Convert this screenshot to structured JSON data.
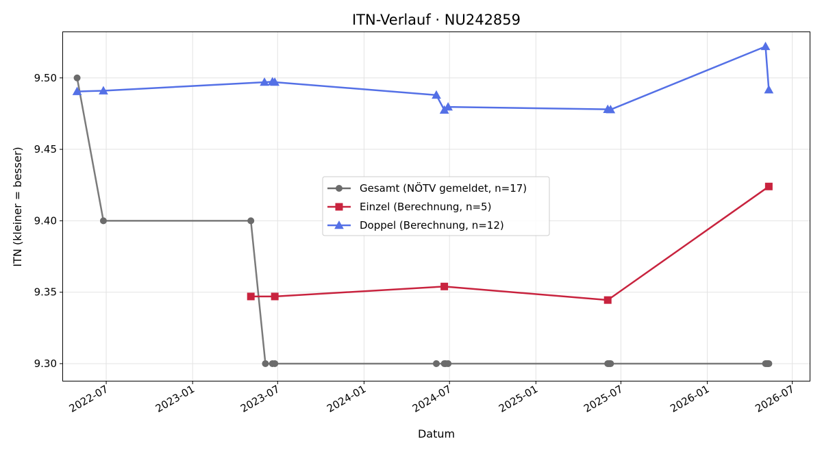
{
  "chart_data": {
    "type": "line",
    "title": "ITN-Verlauf · NU242859",
    "xlabel": "Datum",
    "ylabel": "ITN  (kleiner = besser)",
    "ylim": [
      9.288,
      9.532
    ],
    "xlim": [
      "2022-03-31",
      "2026-08-07"
    ],
    "yticks": [
      9.3,
      9.35,
      9.4,
      9.45,
      9.5
    ],
    "ytick_labels": [
      "9.30",
      "9.35",
      "9.40",
      "9.45",
      "9.50"
    ],
    "xticks": [
      "2022-07-01",
      "2023-01-01",
      "2023-07-01",
      "2024-01-01",
      "2024-07-01",
      "2025-01-01",
      "2025-07-01",
      "2026-01-01",
      "2026-07-01"
    ],
    "xtick_labels": [
      "2022-07",
      "2023-01",
      "2023-07",
      "2024-01",
      "2024-07",
      "2025-01",
      "2025-07",
      "2026-01",
      "2026-07"
    ],
    "grid": true,
    "legend_position": "center-right",
    "series": [
      {
        "name": "Gesamt (NÖTV gemeldet, n=17)",
        "color": "#6b6b6b",
        "marker": "circle",
        "points": [
          {
            "x": "2022-04-30",
            "y": 9.5
          },
          {
            "x": "2022-06-25",
            "y": 9.4
          },
          {
            "x": "2023-05-05",
            "y": 9.4
          },
          {
            "x": "2023-06-05",
            "y": 9.3
          },
          {
            "x": "2023-06-20",
            "y": 9.3
          },
          {
            "x": "2023-06-25",
            "y": 9.3
          },
          {
            "x": "2024-06-03",
            "y": 9.3
          },
          {
            "x": "2024-06-20",
            "y": 9.3
          },
          {
            "x": "2024-06-23",
            "y": 9.3
          },
          {
            "x": "2024-06-28",
            "y": 9.3
          },
          {
            "x": "2025-06-03",
            "y": 9.3
          },
          {
            "x": "2025-06-06",
            "y": 9.3
          },
          {
            "x": "2025-06-09",
            "y": 9.3
          },
          {
            "x": "2026-05-05",
            "y": 9.3
          },
          {
            "x": "2026-05-08",
            "y": 9.3
          },
          {
            "x": "2026-05-10",
            "y": 9.3
          },
          {
            "x": "2026-05-12",
            "y": 9.3
          }
        ]
      },
      {
        "name": "Einzel (Berechnung, n=5)",
        "color": "#c8233e",
        "marker": "square",
        "points": [
          {
            "x": "2023-05-05",
            "y": 9.347
          },
          {
            "x": "2023-06-25",
            "y": 9.347
          },
          {
            "x": "2024-06-20",
            "y": 9.354
          },
          {
            "x": "2025-06-03",
            "y": 9.3445
          },
          {
            "x": "2026-05-12",
            "y": 9.424
          }
        ]
      },
      {
        "name": "Doppel (Berechnung, n=12)",
        "color": "#5470e6",
        "marker": "triangle",
        "points": [
          {
            "x": "2022-04-30",
            "y": 9.4905
          },
          {
            "x": "2022-06-25",
            "y": 9.491
          },
          {
            "x": "2023-06-03",
            "y": 9.497
          },
          {
            "x": "2023-06-20",
            "y": 9.4973
          },
          {
            "x": "2023-06-25",
            "y": 9.497
          },
          {
            "x": "2024-06-03",
            "y": 9.488
          },
          {
            "x": "2024-06-20",
            "y": 9.4775
          },
          {
            "x": "2024-06-28",
            "y": 9.4797
          },
          {
            "x": "2025-06-03",
            "y": 9.478
          },
          {
            "x": "2025-06-09",
            "y": 9.4778
          },
          {
            "x": "2026-05-05",
            "y": 9.522
          },
          {
            "x": "2026-05-12",
            "y": 9.4917
          }
        ]
      }
    ]
  }
}
